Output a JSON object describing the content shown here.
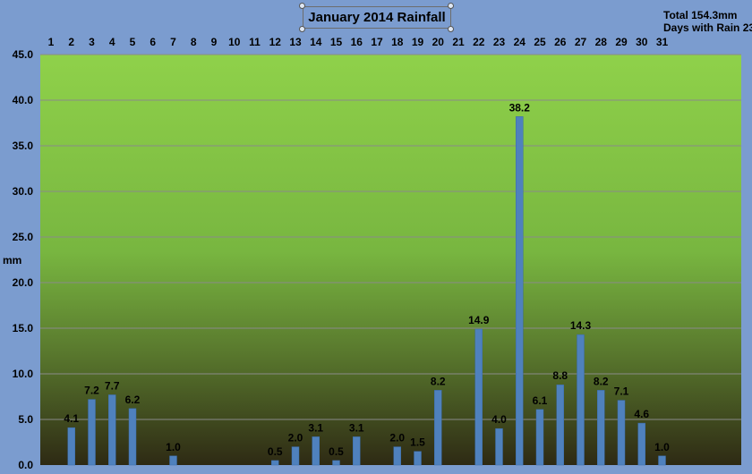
{
  "chart_data": {
    "type": "bar",
    "title": "January 2014 Rainfall",
    "ylabel": "mm",
    "xlabel": "",
    "categories": [
      "1",
      "2",
      "3",
      "4",
      "5",
      "6",
      "7",
      "8",
      "9",
      "10",
      "11",
      "12",
      "13",
      "14",
      "15",
      "16",
      "17",
      "18",
      "19",
      "20",
      "21",
      "22",
      "23",
      "24",
      "25",
      "26",
      "27",
      "28",
      "29",
      "30",
      "31"
    ],
    "values": [
      0,
      4.1,
      7.2,
      7.7,
      6.2,
      0,
      1.0,
      0,
      0,
      0,
      0,
      0.5,
      2.0,
      3.1,
      0.5,
      3.1,
      0,
      2.0,
      1.5,
      8.2,
      0,
      14.9,
      4.0,
      38.2,
      6.1,
      8.8,
      14.3,
      8.2,
      7.1,
      4.6,
      1.0
    ],
    "data_labels": [
      "",
      "4.1",
      "7.2",
      "7.7",
      "6.2",
      "",
      "1.0",
      "",
      "",
      "",
      "",
      "0.5",
      "2.0",
      "3.1",
      "0.5",
      "3.1",
      "",
      "2.0",
      "1.5",
      "8.2",
      "",
      "14.9",
      "4.0",
      "38.2",
      "6.1",
      "8.8",
      "14.3",
      "8.2",
      "7.1",
      "4.6",
      "1.0"
    ],
    "y_ticks": [
      "0.0",
      "5.0",
      "10.0",
      "15.0",
      "20.0",
      "25.0",
      "30.0",
      "35.0",
      "40.0",
      "45.0"
    ],
    "ylim": [
      0,
      45
    ],
    "x_axis_position": "top",
    "grid": true,
    "colors": {
      "bar": "#4f81bd",
      "bar_edge": "#3a6aa8",
      "plot_top": "#8fd14a",
      "plot_bottom": "#2e2a14",
      "background": "#7b9ccf",
      "grid": "#8a8a8a"
    }
  },
  "summary": {
    "total": "Total 154.3mm",
    "days_with_rain": "Days with Rain 23"
  }
}
